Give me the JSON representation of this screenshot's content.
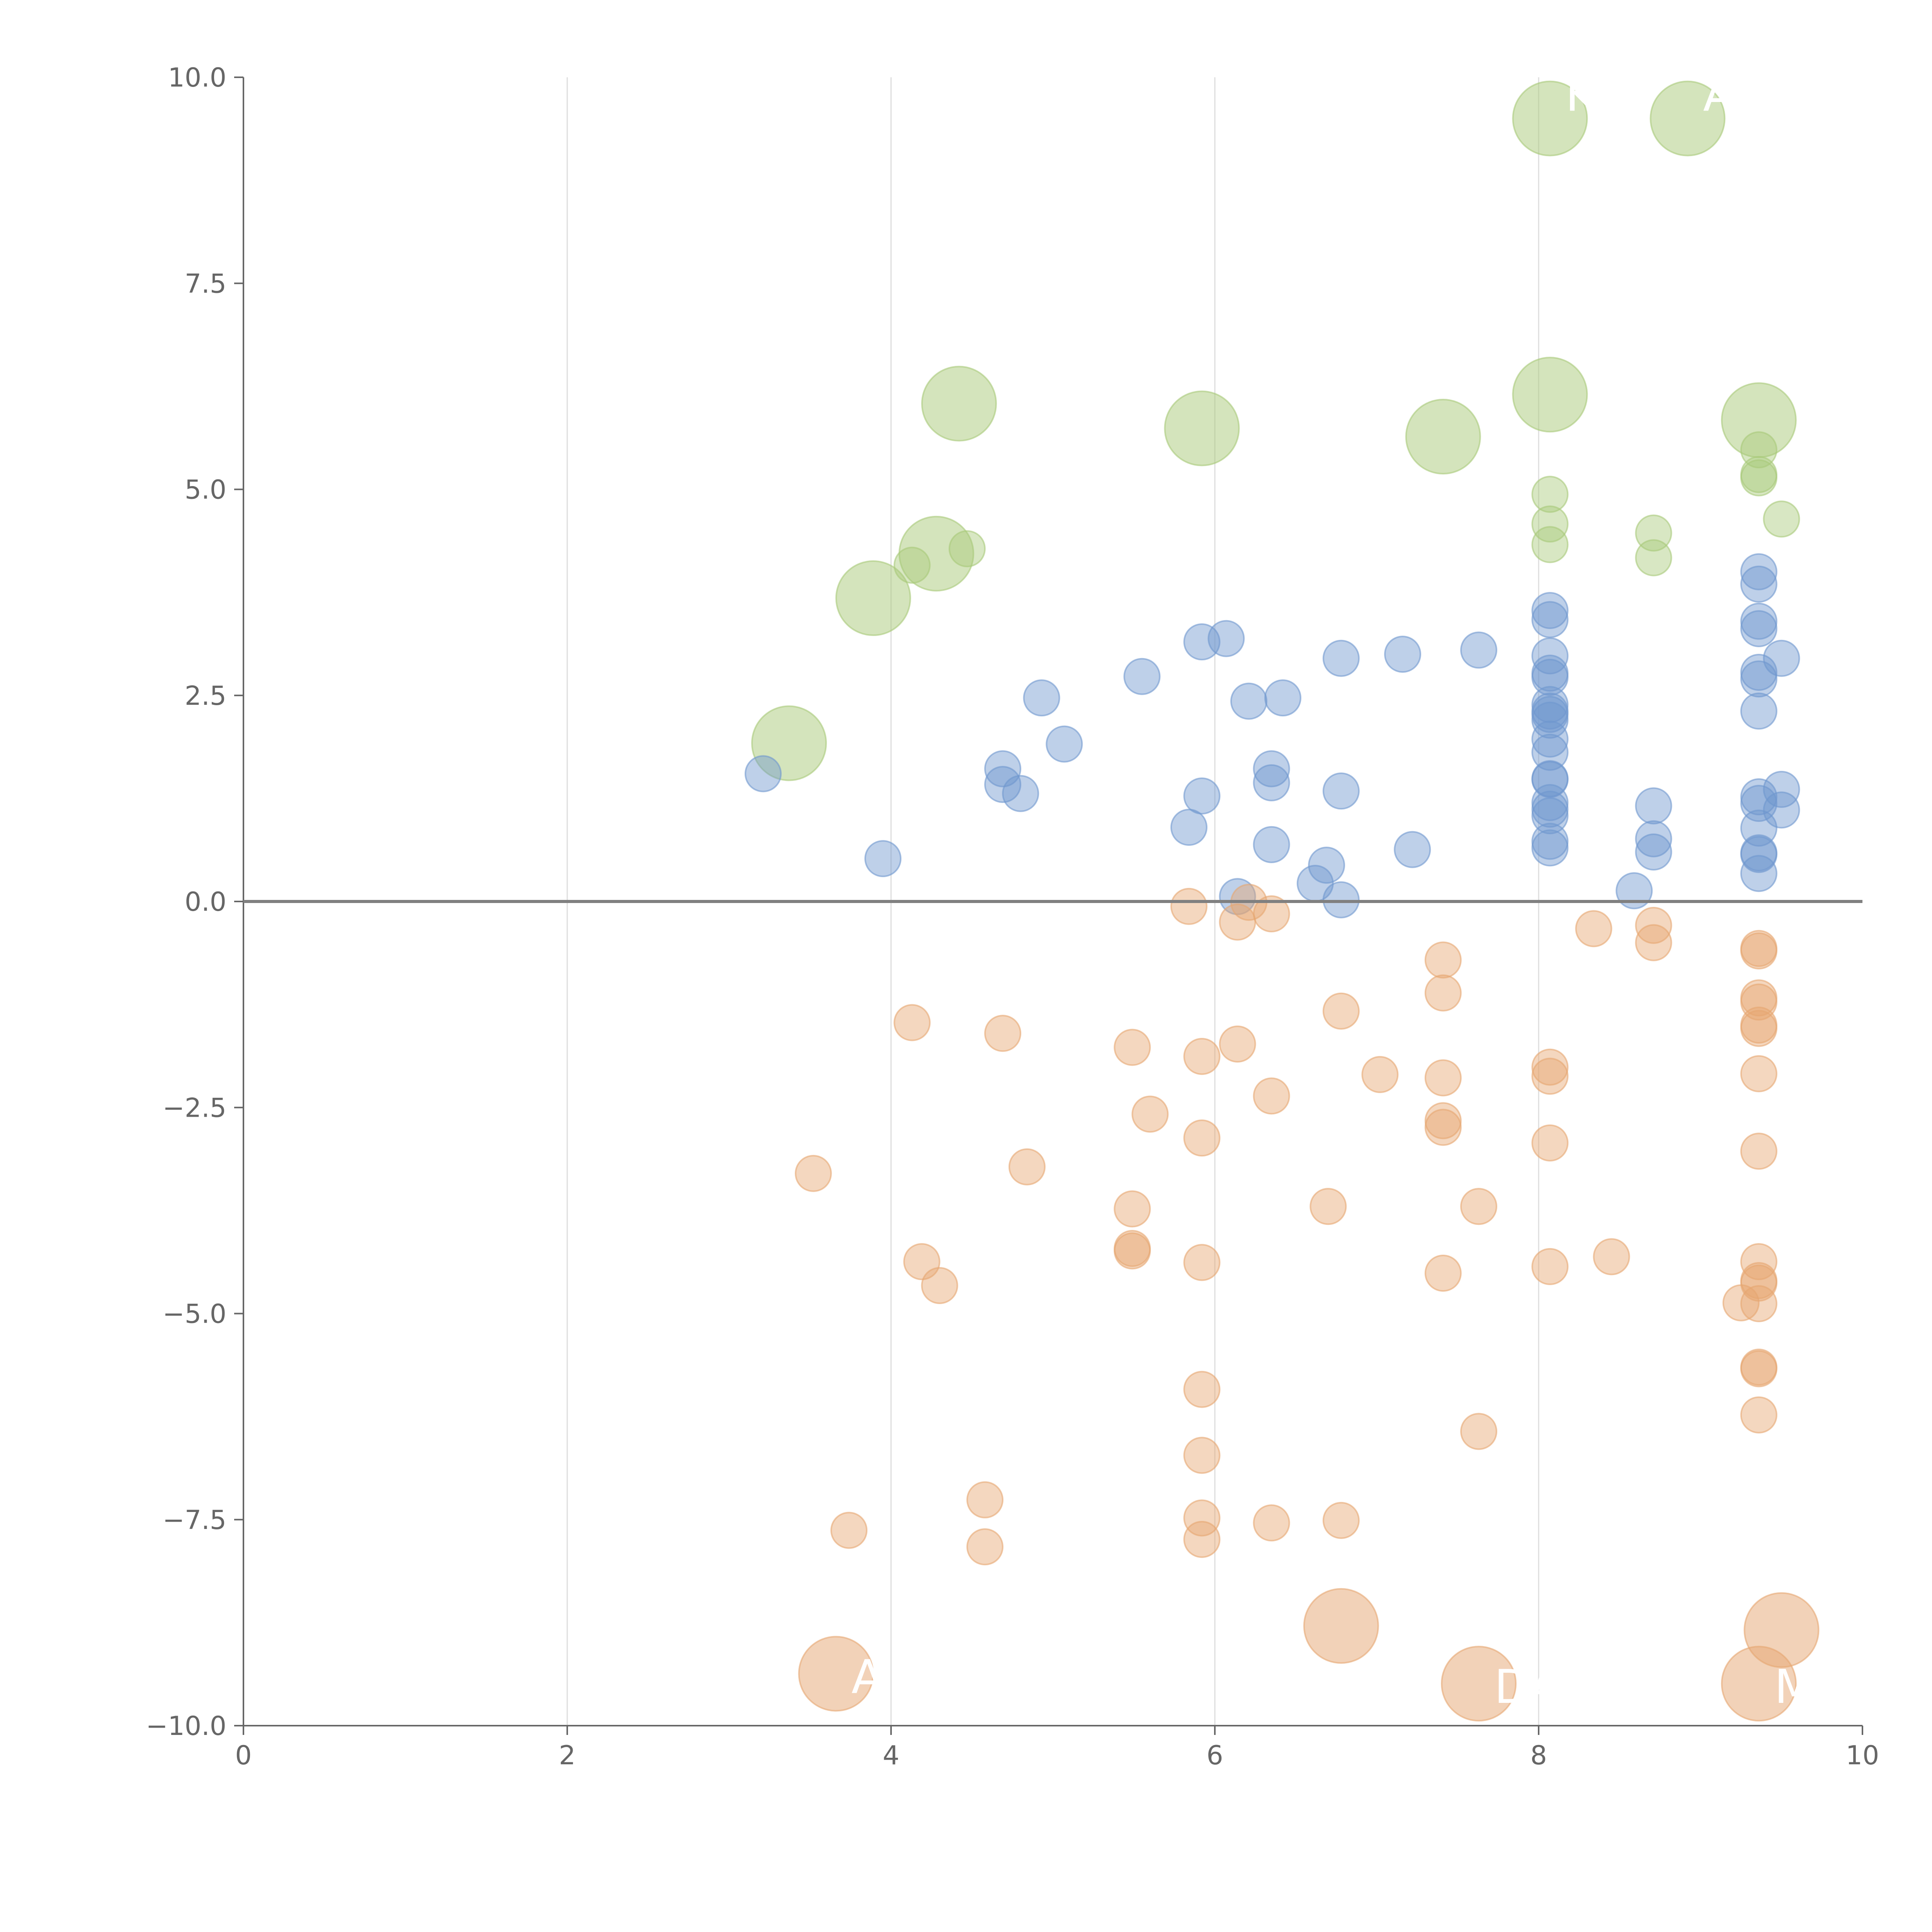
{
  "chart_data": {
    "type": "scatter",
    "title": "",
    "xlabel": "",
    "ylabel": "",
    "xlim": [
      0,
      10
    ],
    "ylim": [
      -10,
      10
    ],
    "x_ticks": [
      "0",
      "2",
      "4",
      "6",
      "8",
      "10"
    ],
    "y_ticks": [
      "10.0",
      "7.5",
      "5.0",
      "2.5",
      "0.0",
      "−2.5",
      "−5.0",
      "−7.5",
      "−10.0"
    ],
    "vertical_gridlines_at": [
      2,
      4,
      6,
      8
    ],
    "reference_line_y": 0,
    "colors": {
      "green": "#a9c97a",
      "blue": "#6f97cf",
      "orange": "#e6a672",
      "axis": "#666666",
      "grid": "#dddddd"
    },
    "series": [
      {
        "name": "green",
        "small_points": [
          [
            4.13,
            4.08
          ],
          [
            4.47,
            4.28
          ],
          [
            8.07,
            4.94
          ],
          [
            8.07,
            4.58
          ],
          [
            8.07,
            4.33
          ],
          [
            8.71,
            4.47
          ],
          [
            8.71,
            4.17
          ],
          [
            9.36,
            5.48
          ],
          [
            9.36,
            5.18
          ],
          [
            9.36,
            5.14
          ],
          [
            9.5,
            4.64
          ]
        ],
        "large_points": [
          [
            3.37,
            1.92
          ],
          [
            3.89,
            3.68
          ],
          [
            4.28,
            4.22
          ],
          [
            4.42,
            6.04
          ],
          [
            5.92,
            5.74
          ],
          [
            7.41,
            5.64
          ],
          [
            8.07,
            6.15
          ],
          [
            9.36,
            5.84
          ],
          [
            8.07,
            9.5
          ],
          [
            8.92,
            9.5
          ]
        ]
      },
      {
        "name": "blue",
        "small_points": [
          [
            3.21,
            1.55
          ],
          [
            3.95,
            0.52
          ],
          [
            4.69,
            1.61
          ],
          [
            4.69,
            1.42
          ],
          [
            4.8,
            1.31
          ],
          [
            4.93,
            2.47
          ],
          [
            5.07,
            1.91
          ],
          [
            5.55,
            2.73
          ],
          [
            5.84,
            0.9
          ],
          [
            5.92,
            3.15
          ],
          [
            5.92,
            1.28
          ],
          [
            6.07,
            3.19
          ],
          [
            6.14,
            0.06
          ],
          [
            6.21,
            2.43
          ],
          [
            6.35,
            1.61
          ],
          [
            6.35,
            1.44
          ],
          [
            6.35,
            0.69
          ],
          [
            6.42,
            2.47
          ],
          [
            6.62,
            0.22
          ],
          [
            6.69,
            0.44
          ],
          [
            6.78,
            2.95
          ],
          [
            6.78,
            1.34
          ],
          [
            6.78,
            0.02
          ],
          [
            7.16,
            3.0
          ],
          [
            7.22,
            0.63
          ],
          [
            7.63,
            3.05
          ],
          [
            8.07,
            3.53
          ],
          [
            8.07,
            3.42
          ],
          [
            8.07,
            2.98
          ],
          [
            8.07,
            2.77
          ],
          [
            8.07,
            2.72
          ],
          [
            8.07,
            2.39
          ],
          [
            8.07,
            2.31
          ],
          [
            8.07,
            2.27
          ],
          [
            8.07,
            2.2
          ],
          [
            8.07,
            1.97
          ],
          [
            8.07,
            1.81
          ],
          [
            8.07,
            1.49
          ],
          [
            8.07,
            1.48
          ],
          [
            8.07,
            1.2
          ],
          [
            8.07,
            1.12
          ],
          [
            8.07,
            1.04
          ],
          [
            8.07,
            0.73
          ],
          [
            8.07,
            0.65
          ],
          [
            8.59,
            0.13
          ],
          [
            8.71,
            1.16
          ],
          [
            8.71,
            0.76
          ],
          [
            8.71,
            0.6
          ],
          [
            9.36,
            4.0
          ],
          [
            9.36,
            3.85
          ],
          [
            9.36,
            3.4
          ],
          [
            9.36,
            3.31
          ],
          [
            9.36,
            2.78
          ],
          [
            9.36,
            2.7
          ],
          [
            9.36,
            2.31
          ],
          [
            9.36,
            1.27
          ],
          [
            9.36,
            1.19
          ],
          [
            9.36,
            0.89
          ],
          [
            9.36,
            0.59
          ],
          [
            9.36,
            0.57
          ],
          [
            9.36,
            0.34
          ],
          [
            9.5,
            2.95
          ],
          [
            9.5,
            1.36
          ],
          [
            9.5,
            1.11
          ]
        ],
        "large_points": []
      },
      {
        "name": "orange",
        "small_points": [
          [
            3.52,
            -3.3
          ],
          [
            3.74,
            -7.63
          ],
          [
            4.13,
            -1.47
          ],
          [
            4.19,
            -4.37
          ],
          [
            4.3,
            -4.66
          ],
          [
            4.58,
            -7.26
          ],
          [
            4.58,
            -7.83
          ],
          [
            4.69,
            -1.6
          ],
          [
            4.84,
            -3.22
          ],
          [
            5.49,
            -1.77
          ],
          [
            5.49,
            -3.73
          ],
          [
            5.49,
            -4.21
          ],
          [
            5.49,
            -4.24
          ],
          [
            5.6,
            -2.58
          ],
          [
            5.84,
            -0.06
          ],
          [
            5.92,
            -1.88
          ],
          [
            5.92,
            -2.87
          ],
          [
            5.92,
            -4.38
          ],
          [
            5.92,
            -5.92
          ],
          [
            5.92,
            -6.72
          ],
          [
            5.92,
            -7.48
          ],
          [
            5.92,
            -7.74
          ],
          [
            6.14,
            -0.25
          ],
          [
            6.14,
            -1.73
          ],
          [
            6.21,
            -0.01
          ],
          [
            6.35,
            -0.15
          ],
          [
            6.35,
            -2.36
          ],
          [
            6.35,
            -7.54
          ],
          [
            6.7,
            -3.7
          ],
          [
            6.78,
            -1.33
          ],
          [
            6.78,
            -7.51
          ],
          [
            7.02,
            -2.1
          ],
          [
            7.41,
            -0.71
          ],
          [
            7.41,
            -1.11
          ],
          [
            7.41,
            -2.14
          ],
          [
            7.41,
            -2.66
          ],
          [
            7.41,
            -2.74
          ],
          [
            7.41,
            -4.51
          ],
          [
            7.63,
            -3.7
          ],
          [
            7.63,
            -6.43
          ],
          [
            8.07,
            -2.01
          ],
          [
            8.07,
            -2.12
          ],
          [
            8.07,
            -2.93
          ],
          [
            8.07,
            -4.43
          ],
          [
            8.34,
            -0.33
          ],
          [
            8.45,
            -4.31
          ],
          [
            8.71,
            -0.29
          ],
          [
            8.71,
            -0.5
          ],
          [
            9.25,
            -4.87
          ],
          [
            9.36,
            -0.57
          ],
          [
            9.36,
            -0.6
          ],
          [
            9.36,
            -1.17
          ],
          [
            9.36,
            -1.22
          ],
          [
            9.36,
            -1.5
          ],
          [
            9.36,
            -1.54
          ],
          [
            9.36,
            -2.09
          ],
          [
            9.36,
            -3.03
          ],
          [
            9.36,
            -4.37
          ],
          [
            9.36,
            -4.6
          ],
          [
            9.36,
            -4.63
          ],
          [
            9.36,
            -4.88
          ],
          [
            9.36,
            -5.65
          ],
          [
            9.36,
            -5.67
          ],
          [
            9.36,
            -6.23
          ]
        ],
        "large_points": [
          [
            3.66,
            -9.37
          ],
          [
            6.78,
            -8.79
          ],
          [
            7.63,
            -9.49
          ],
          [
            9.36,
            -9.49
          ],
          [
            9.5,
            -8.84
          ]
        ]
      }
    ],
    "annotations": [
      {
        "text": "KL",
        "x": 8.07,
        "y": 9.5,
        "series": "green"
      },
      {
        "text": "A",
        "x": 8.92,
        "y": 9.5,
        "series": "green"
      },
      {
        "text": "A",
        "x": 3.66,
        "y": -9.37,
        "series": "orange"
      },
      {
        "text": "DA",
        "x": 7.63,
        "y": -9.49,
        "series": "orange"
      },
      {
        "text": "MR",
        "x": 9.36,
        "y": -9.49,
        "series": "orange"
      }
    ]
  }
}
